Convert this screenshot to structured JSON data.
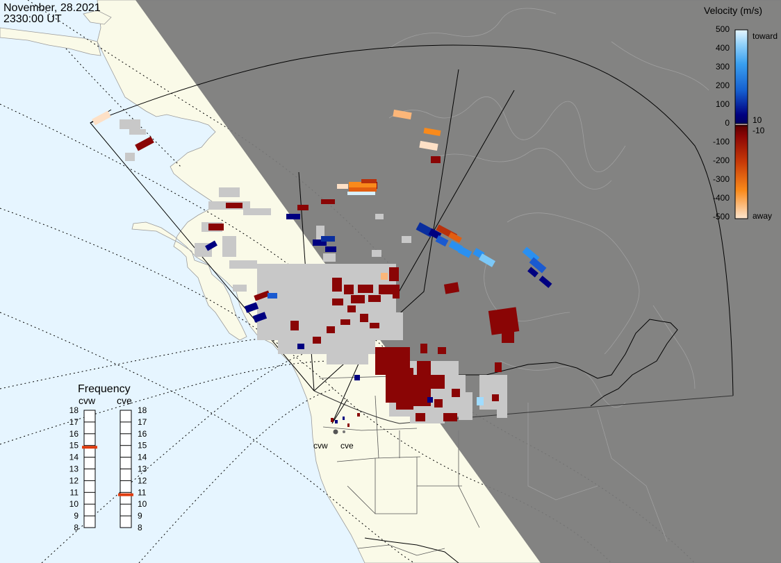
{
  "header": {
    "date": "November, 28.2021",
    "time": "2330:00 UT"
  },
  "legend": {
    "title": "Velocity (m/s)",
    "tick_labels": [
      "500",
      "400",
      "300",
      "200",
      "100",
      "10",
      "0",
      "-10",
      "-100",
      "-200",
      "-300",
      "-400",
      "-500"
    ],
    "toward_label": "toward",
    "away_label": "away",
    "colors": [
      "#fde0c6",
      "#fbb679",
      "#f98a1b",
      "#e25e10",
      "#b8310c",
      "#8a0505",
      "#000066",
      "#0a2e9e",
      "#1a5ad0",
      "#2a90f0",
      "#7cc8f7",
      "#d7f0fe"
    ]
  },
  "frequency": {
    "title": "Frequency",
    "radars": [
      {
        "name": "cvw",
        "mhz": 14.85
      },
      {
        "name": "cve",
        "mhz": 10.8
      }
    ],
    "scale": [
      "18",
      "17",
      "16",
      "15",
      "14",
      "13",
      "12",
      "11",
      "10",
      "9",
      "8"
    ]
  },
  "radar_labels": {
    "west": "cvw",
    "east": "cve"
  },
  "map_colors": {
    "ocean": "#e6f5ff",
    "land": "#fafae8",
    "night": "#7a7a7a",
    "no_data": "#c8c8c8",
    "indicator": "#e03c0f"
  }
}
